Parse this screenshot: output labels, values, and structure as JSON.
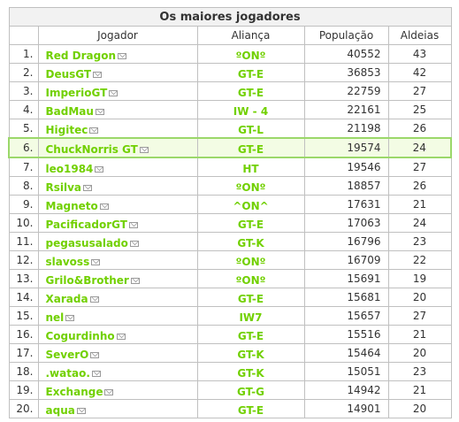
{
  "title": "Os maiores jogadores",
  "columns": {
    "player": "Jogador",
    "alliance": "Aliança",
    "population": "População",
    "villages": "Aldeias"
  },
  "rows": [
    {
      "rank": "1.",
      "player": "Red Dragon",
      "alliance": "ºONº",
      "population": "40552",
      "villages": "43"
    },
    {
      "rank": "2.",
      "player": "DeusGT",
      "alliance": "GT-E",
      "population": "36853",
      "villages": "42"
    },
    {
      "rank": "3.",
      "player": "ImperioGT",
      "alliance": "GT-E",
      "population": "22759",
      "villages": "27"
    },
    {
      "rank": "4.",
      "player": "BadMau",
      "alliance": "IW - 4",
      "population": "22161",
      "villages": "25"
    },
    {
      "rank": "5.",
      "player": "Higitec",
      "alliance": "GT-L",
      "population": "21198",
      "villages": "26"
    },
    {
      "rank": "6.",
      "player": "ChuckNorris GT",
      "alliance": "GT-E",
      "population": "19574",
      "villages": "24"
    },
    {
      "rank": "7.",
      "player": "leo1984",
      "alliance": "HT",
      "population": "19546",
      "villages": "27"
    },
    {
      "rank": "8.",
      "player": "Rsilva",
      "alliance": "ºONº",
      "population": "18857",
      "villages": "26"
    },
    {
      "rank": "9.",
      "player": "Magneto",
      "alliance": "^ON^",
      "population": "17631",
      "villages": "21"
    },
    {
      "rank": "10.",
      "player": "PacificadorGT",
      "alliance": "GT-E",
      "population": "17063",
      "villages": "24"
    },
    {
      "rank": "11.",
      "player": "pegasusalado",
      "alliance": "GT-K",
      "population": "16796",
      "villages": "23"
    },
    {
      "rank": "12.",
      "player": "slavoss",
      "alliance": "ºONº",
      "population": "16709",
      "villages": "22"
    },
    {
      "rank": "13.",
      "player": "Grilo&Brother",
      "alliance": "ºONº",
      "population": "15691",
      "villages": "19"
    },
    {
      "rank": "14.",
      "player": "Xarada",
      "alliance": "GT-E",
      "population": "15681",
      "villages": "20"
    },
    {
      "rank": "15.",
      "player": "nel",
      "alliance": "IW7",
      "population": "15657",
      "villages": "27"
    },
    {
      "rank": "16.",
      "player": "Cogurdinho",
      "alliance": "GT-E",
      "population": "15516",
      "villages": "21"
    },
    {
      "rank": "17.",
      "player": "SeverO",
      "alliance": "GT-K",
      "population": "15464",
      "villages": "20"
    },
    {
      "rank": "18.",
      "player": ".watao.",
      "alliance": "GT-K",
      "population": "15051",
      "villages": "23"
    },
    {
      "rank": "19.",
      "player": "Exchange",
      "alliance": "GT-G",
      "population": "14942",
      "villages": "21"
    },
    {
      "rank": "20.",
      "player": "aqua",
      "alliance": "GT-E",
      "population": "14901",
      "villages": "20"
    }
  ],
  "highlighted_rank": "6.",
  "colors": {
    "link_green": "#71d000",
    "highlight_border": "#9bd86a",
    "highlight_bg": "#f3fce4",
    "border": "#c0c0c0"
  },
  "icons": {
    "message": "envelope-icon"
  }
}
